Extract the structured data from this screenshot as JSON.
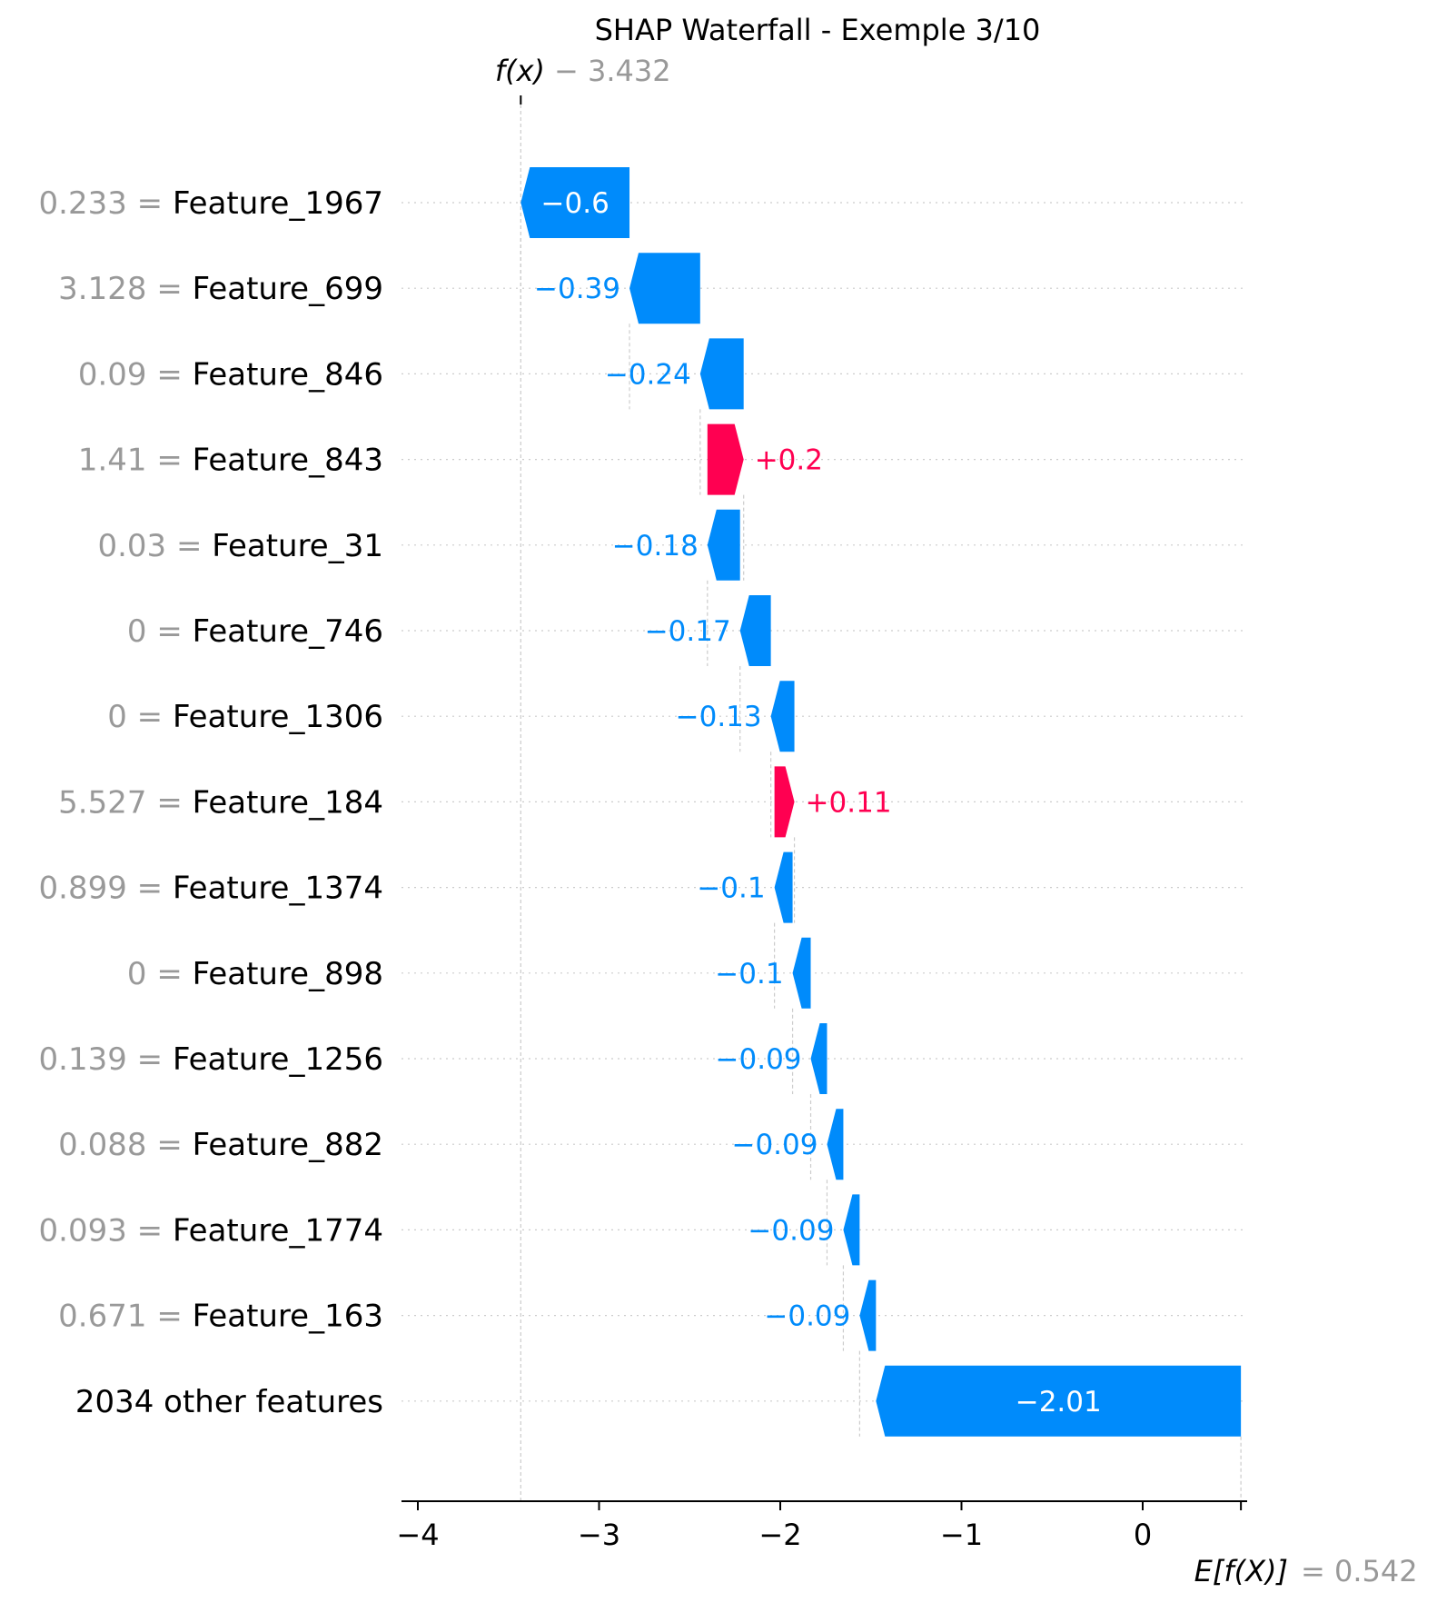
{
  "chart_data": {
    "type": "waterfall",
    "title": "SHAP Waterfall - Exemple 3/10",
    "fx_label": "f(x)",
    "fx_value": "− 3.432",
    "fx_numeric": -3.432,
    "efx_label": "E[f(X)]",
    "efx_value": "= 0.542",
    "efx_numeric": 0.542,
    "xlim": [
      -4.1,
      0.6
    ],
    "xticks": [
      -4,
      -3,
      -2,
      -1,
      0
    ],
    "xtick_labels": [
      "−4",
      "−3",
      "−2",
      "−1",
      "0"
    ],
    "colors": {
      "positive": "#ff0051",
      "negative": "#008bfb",
      "feature_value": "#999999",
      "text": "#000000",
      "grid": "#cccccc"
    },
    "rows": [
      {
        "value": "0.233",
        "feature": "Feature_1967",
        "shap": -0.6,
        "label": "−0.6",
        "start": -2.832,
        "end": -3.432
      },
      {
        "value": "3.128",
        "feature": "Feature_699",
        "shap": -0.39,
        "label": "−0.39",
        "start": -2.442,
        "end": -2.832
      },
      {
        "value": "0.09",
        "feature": "Feature_846",
        "shap": -0.24,
        "label": "−0.24",
        "start": -2.202,
        "end": -2.442
      },
      {
        "value": "1.41",
        "feature": "Feature_843",
        "shap": 0.2,
        "label": "+0.2",
        "start": -2.402,
        "end": -2.202
      },
      {
        "value": "0.03",
        "feature": "Feature_31",
        "shap": -0.18,
        "label": "−0.18",
        "start": -2.222,
        "end": -2.402
      },
      {
        "value": "0",
        "feature": "Feature_746",
        "shap": -0.17,
        "label": "−0.17",
        "start": -2.052,
        "end": -2.222
      },
      {
        "value": "0",
        "feature": "Feature_1306",
        "shap": -0.13,
        "label": "−0.13",
        "start": -1.922,
        "end": -2.052
      },
      {
        "value": "5.527",
        "feature": "Feature_184",
        "shap": 0.11,
        "label": "+0.11",
        "start": -2.032,
        "end": -1.922
      },
      {
        "value": "0.899",
        "feature": "Feature_1374",
        "shap": -0.1,
        "label": "−0.1",
        "start": -1.932,
        "end": -2.032
      },
      {
        "value": "0",
        "feature": "Feature_898",
        "shap": -0.1,
        "label": "−0.1",
        "start": -1.832,
        "end": -1.932
      },
      {
        "value": "0.139",
        "feature": "Feature_1256",
        "shap": -0.09,
        "label": "−0.09",
        "start": -1.742,
        "end": -1.832
      },
      {
        "value": "0.088",
        "feature": "Feature_882",
        "shap": -0.09,
        "label": "−0.09",
        "start": -1.652,
        "end": -1.742
      },
      {
        "value": "0.093",
        "feature": "Feature_1774",
        "shap": -0.09,
        "label": "−0.09",
        "start": -1.562,
        "end": -1.652
      },
      {
        "value": "0.671",
        "feature": "Feature_163",
        "shap": -0.09,
        "label": "−0.09",
        "start": -1.472,
        "end": -1.562
      },
      {
        "value": "",
        "feature": "2034 other features",
        "shap": -2.01,
        "label": "−2.01",
        "start": 0.542,
        "end": -1.472
      }
    ]
  }
}
